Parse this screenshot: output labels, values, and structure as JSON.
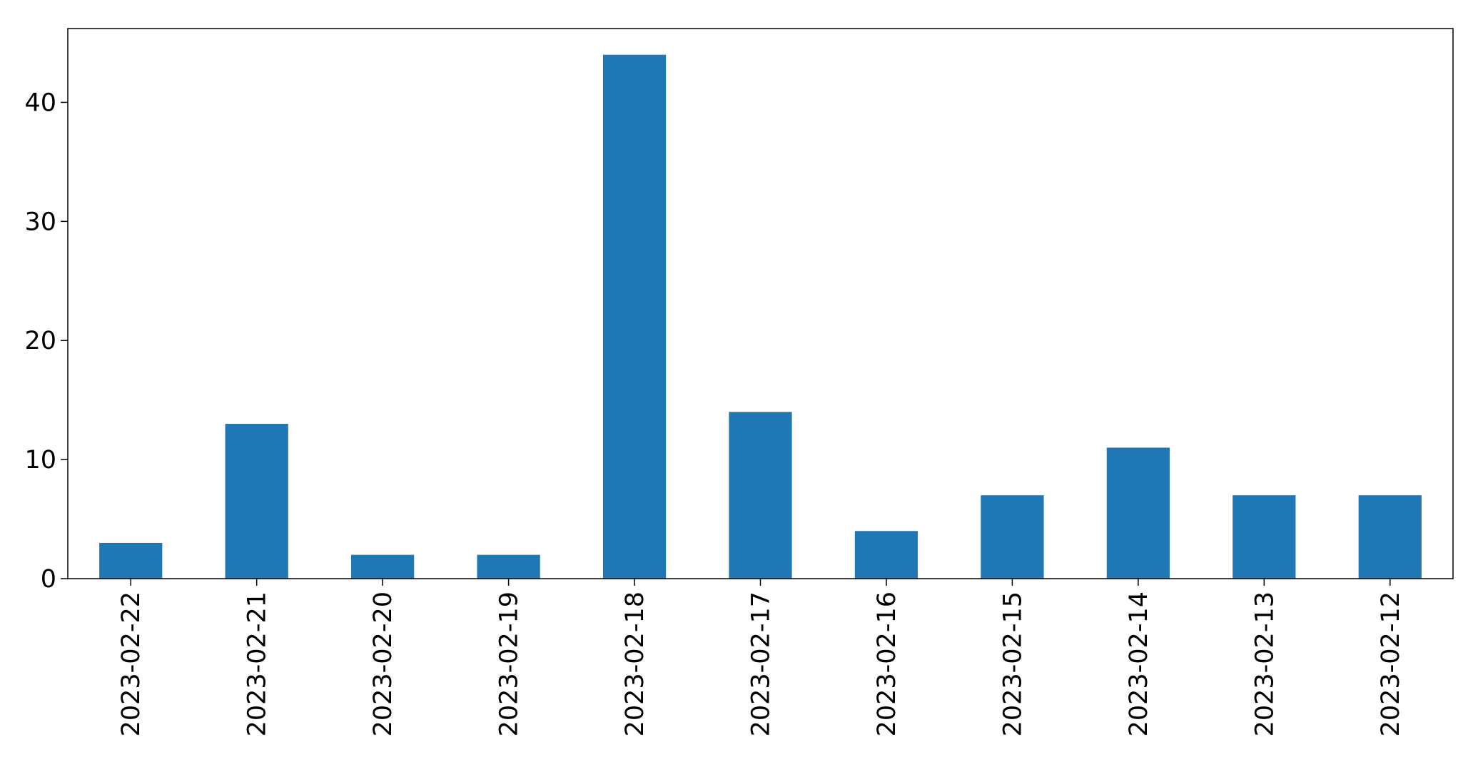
{
  "chart_data": {
    "type": "bar",
    "title": "",
    "xlabel": "",
    "ylabel": "",
    "categories": [
      "2023-02-22",
      "2023-02-21",
      "2023-02-20",
      "2023-02-19",
      "2023-02-18",
      "2023-02-17",
      "2023-02-16",
      "2023-02-15",
      "2023-02-14",
      "2023-02-13",
      "2023-02-12"
    ],
    "values": [
      3,
      13,
      2,
      2,
      44,
      14,
      4,
      7,
      11,
      7,
      7
    ],
    "ylim": [
      0,
      46.2
    ],
    "yticks": [
      0,
      10,
      20,
      30,
      40
    ],
    "ytick_labels": [
      "0",
      "10",
      "20",
      "30",
      "40"
    ],
    "grid": false,
    "legend": "none",
    "bar_color": "#1f77b4",
    "axis_color": "#000000",
    "tick_label_rotation": "vertical"
  }
}
